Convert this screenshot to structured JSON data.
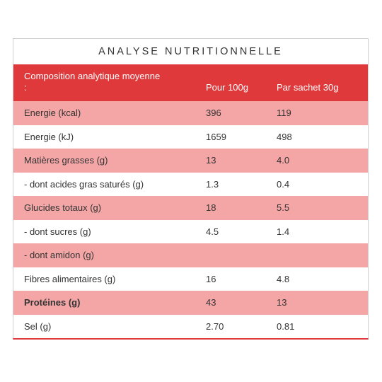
{
  "panel": {
    "title": "ANALYSE NUTRITIONNELLE",
    "header": {
      "composition": "Composition analytique moyenne",
      "composition_suffix": ":",
      "per100": "Pour 100g",
      "perSachet": "Par sachet 30g"
    },
    "rows": [
      {
        "label": "Energie (kcal)",
        "per100": "396",
        "perSachet": "119"
      },
      {
        "label": "Energie (kJ)",
        "per100": "1659",
        "perSachet": "498"
      },
      {
        "label": "Matières grasses (g)",
        "per100": "13",
        "perSachet": "4.0"
      },
      {
        "label": "- dont acides gras saturés (g)",
        "per100": "1.3",
        "perSachet": "0.4"
      },
      {
        "label": "Glucides totaux (g)",
        "per100": "18",
        "perSachet": "5.5"
      },
      {
        "label": "- dont sucres (g)",
        "per100": "4.5",
        "perSachet": "1.4"
      },
      {
        "label": "- dont amidon (g)",
        "per100": "",
        "perSachet": ""
      },
      {
        "label": "Fibres alimentaires (g)",
        "per100": "16",
        "perSachet": "4.8"
      },
      {
        "label": "Protéines (g)",
        "per100": "43",
        "perSachet": "13"
      },
      {
        "label": "Sel (g)",
        "per100": "2.70",
        "perSachet": "0.81"
      }
    ]
  },
  "colors": {
    "header_red": "#e0393c",
    "row_pink": "#f4a6a6",
    "row_white": "#ffffff"
  }
}
